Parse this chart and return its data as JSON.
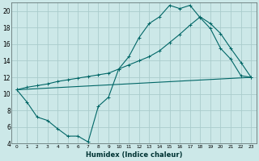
{
  "xlabel": "Humidex (Indice chaleur)",
  "bg_color": "#cce8e8",
  "grid_color": "#aacccc",
  "line_color": "#006666",
  "xlim": [
    -0.5,
    23.5
  ],
  "ylim": [
    4,
    21
  ],
  "xticks": [
    0,
    1,
    2,
    3,
    4,
    5,
    6,
    7,
    8,
    9,
    10,
    11,
    12,
    13,
    14,
    15,
    16,
    17,
    18,
    19,
    20,
    21,
    22,
    23
  ],
  "yticks": [
    4,
    6,
    8,
    10,
    12,
    14,
    16,
    18,
    20
  ],
  "line1_x": [
    0,
    1,
    2,
    3,
    4,
    5,
    6,
    7,
    8,
    9,
    10,
    11,
    12,
    13,
    14,
    15,
    16,
    17,
    18,
    19,
    20,
    21,
    22,
    23
  ],
  "line1_y": [
    10.5,
    9.0,
    7.2,
    6.8,
    5.8,
    4.9,
    4.9,
    4.2,
    8.5,
    9.6,
    13.0,
    14.5,
    16.8,
    18.5,
    19.3,
    20.7,
    20.3,
    20.7,
    19.2,
    17.9,
    15.5,
    14.2,
    12.2,
    12.0
  ],
  "line2_x": [
    0,
    1,
    2,
    3,
    4,
    5,
    6,
    7,
    8,
    9,
    10,
    11,
    12,
    13,
    14,
    15,
    16,
    17,
    18,
    19,
    20,
    21,
    22,
    23
  ],
  "line2_y": [
    10.5,
    10.8,
    11.0,
    11.2,
    11.5,
    11.7,
    11.9,
    12.1,
    12.3,
    12.5,
    13.0,
    13.5,
    14.0,
    14.5,
    15.2,
    16.2,
    17.2,
    18.3,
    19.3,
    18.5,
    17.3,
    15.5,
    13.8,
    12.0
  ],
  "line3_x": [
    0,
    23
  ],
  "line3_y": [
    10.5,
    12.0
  ]
}
